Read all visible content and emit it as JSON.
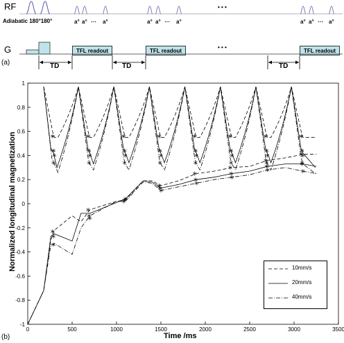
{
  "panel_a": {
    "rf_label": "RF",
    "g_label": "G",
    "adiabatic_label": "Adiabatic 180°180°",
    "alpha_label": "a°",
    "dots_label": "…",
    "ellipsis": "• • •",
    "panel_tag": "(a)",
    "tfl_readout": "TFL readout",
    "td_label": "TD"
  },
  "panel_b": {
    "panel_tag": "(b)"
  },
  "chart_data": {
    "type": "line",
    "xlabel": "Time /ms",
    "ylabel": "Normalized longitudinal magnetization",
    "xlim": [
      0,
      3500
    ],
    "ylim": [
      -1,
      1
    ],
    "xticks": [
      "0",
      "500",
      "1000",
      "1500",
      "2000",
      "2500",
      "3000",
      "3500"
    ],
    "yticks": [
      "-1",
      "-0.8",
      "-0.6",
      "-0.4",
      "-0.2",
      "0",
      "0.2",
      "0.4",
      "0.6",
      "0.8",
      "1"
    ],
    "legend": {
      "placement": "bottom-right"
    },
    "series": [
      {
        "name": "10mm/s",
        "style": "dashed",
        "upper": [
          [
            180,
            0.97
          ],
          [
            280,
            0.6
          ],
          [
            300,
            0.55
          ],
          [
            340,
            0.55
          ],
          [
            570,
            0.97
          ],
          [
            680,
            0.6
          ],
          [
            700,
            0.55
          ],
          [
            740,
            0.55
          ],
          [
            970,
            0.97
          ],
          [
            1080,
            0.6
          ],
          [
            1100,
            0.55
          ],
          [
            1140,
            0.55
          ],
          [
            1370,
            0.97
          ],
          [
            1480,
            0.6
          ],
          [
            1500,
            0.55
          ],
          [
            1540,
            0.55
          ],
          [
            1770,
            0.97
          ],
          [
            1880,
            0.6
          ],
          [
            1900,
            0.55
          ],
          [
            1940,
            0.55
          ],
          [
            2170,
            0.97
          ],
          [
            2280,
            0.6
          ],
          [
            2300,
            0.55
          ],
          [
            2340,
            0.55
          ],
          [
            2570,
            0.97
          ],
          [
            2680,
            0.6
          ],
          [
            2700,
            0.55
          ],
          [
            2740,
            0.55
          ],
          [
            2970,
            0.97
          ],
          [
            3080,
            0.6
          ],
          [
            3100,
            0.55
          ],
          [
            3240,
            0.55
          ]
        ],
        "lower": [
          [
            0,
            -1
          ],
          [
            180,
            -0.72
          ],
          [
            260,
            -0.3
          ],
          [
            300,
            -0.22
          ],
          [
            500,
            -0.1
          ],
          [
            600,
            -0.15
          ],
          [
            700,
            -0.05
          ],
          [
            1000,
            0.02
          ],
          [
            1100,
            0.03
          ],
          [
            1300,
            0.19
          ],
          [
            1400,
            0.19
          ],
          [
            1500,
            0.15
          ],
          [
            1700,
            0.19
          ],
          [
            1900,
            0.25
          ],
          [
            2100,
            0.27
          ],
          [
            2300,
            0.3
          ],
          [
            2500,
            0.31
          ],
          [
            2700,
            0.36
          ],
          [
            2900,
            0.38
          ],
          [
            3100,
            0.41
          ],
          [
            3250,
            0.41
          ]
        ]
      },
      {
        "name": "20mm/s",
        "style": "solid",
        "upper": [
          [
            180,
            0.97
          ],
          [
            260,
            0.46
          ],
          [
            290,
            0.42
          ],
          [
            330,
            0.3
          ],
          [
            570,
            0.97
          ],
          [
            680,
            0.45
          ],
          [
            700,
            0.42
          ],
          [
            740,
            0.33
          ],
          [
            970,
            0.97
          ],
          [
            1080,
            0.45
          ],
          [
            1100,
            0.42
          ],
          [
            1140,
            0.34
          ],
          [
            1370,
            0.97
          ],
          [
            1480,
            0.45
          ],
          [
            1500,
            0.42
          ],
          [
            1540,
            0.34
          ],
          [
            1770,
            0.97
          ],
          [
            1880,
            0.45
          ],
          [
            1900,
            0.42
          ],
          [
            1940,
            0.34
          ],
          [
            2170,
            0.97
          ],
          [
            2280,
            0.45
          ],
          [
            2300,
            0.42
          ],
          [
            2340,
            0.34
          ],
          [
            2570,
            0.97
          ],
          [
            2680,
            0.45
          ],
          [
            2700,
            0.42
          ],
          [
            2740,
            0.34
          ],
          [
            2970,
            0.97
          ],
          [
            3080,
            0.45
          ],
          [
            3100,
            0.42
          ],
          [
            3240,
            0.3
          ]
        ],
        "lower": [
          [
            0,
            -1
          ],
          [
            180,
            -0.72
          ],
          [
            260,
            -0.27
          ],
          [
            300,
            -0.25
          ],
          [
            500,
            -0.31
          ],
          [
            600,
            -0.08
          ],
          [
            700,
            -0.08
          ],
          [
            1000,
            0.01
          ],
          [
            1100,
            0.04
          ],
          [
            1300,
            0.19
          ],
          [
            1400,
            0.18
          ],
          [
            1500,
            0.13
          ],
          [
            1700,
            0.16
          ],
          [
            1900,
            0.2
          ],
          [
            2100,
            0.22
          ],
          [
            2300,
            0.25
          ],
          [
            2500,
            0.27
          ],
          [
            2700,
            0.31
          ],
          [
            2900,
            0.33
          ],
          [
            3100,
            0.33
          ],
          [
            3250,
            0.31
          ]
        ]
      },
      {
        "name": "40mm/s",
        "style": "dash-dot",
        "upper": [
          [
            180,
            0.97
          ],
          [
            270,
            0.38
          ],
          [
            300,
            0.33
          ],
          [
            340,
            0.26
          ],
          [
            570,
            0.97
          ],
          [
            680,
            0.38
          ],
          [
            700,
            0.33
          ],
          [
            740,
            0.28
          ],
          [
            970,
            0.97
          ],
          [
            1080,
            0.38
          ],
          [
            1100,
            0.33
          ],
          [
            1140,
            0.28
          ],
          [
            1370,
            0.97
          ],
          [
            1480,
            0.38
          ],
          [
            1500,
            0.33
          ],
          [
            1540,
            0.28
          ],
          [
            1770,
            0.97
          ],
          [
            1880,
            0.38
          ],
          [
            1900,
            0.33
          ],
          [
            1940,
            0.28
          ],
          [
            2170,
            0.97
          ],
          [
            2280,
            0.38
          ],
          [
            2300,
            0.33
          ],
          [
            2340,
            0.28
          ],
          [
            2570,
            0.97
          ],
          [
            2680,
            0.38
          ],
          [
            2700,
            0.33
          ],
          [
            2740,
            0.28
          ],
          [
            2970,
            0.97
          ],
          [
            3080,
            0.38
          ],
          [
            3100,
            0.33
          ],
          [
            3240,
            0.25
          ]
        ],
        "lower": [
          [
            0,
            -1
          ],
          [
            180,
            -0.72
          ],
          [
            260,
            -0.34
          ],
          [
            300,
            -0.33
          ],
          [
            500,
            -0.42
          ],
          [
            600,
            -0.2
          ],
          [
            700,
            -0.1
          ],
          [
            1000,
            0.02
          ],
          [
            1100,
            0.02
          ],
          [
            1300,
            0.18
          ],
          [
            1400,
            0.17
          ],
          [
            1500,
            0.11
          ],
          [
            1700,
            0.14
          ],
          [
            1900,
            0.17
          ],
          [
            2100,
            0.2
          ],
          [
            2300,
            0.22
          ],
          [
            2500,
            0.24
          ],
          [
            2700,
            0.28
          ],
          [
            2900,
            0.3
          ],
          [
            3100,
            0.27
          ],
          [
            3250,
            0.25
          ]
        ]
      }
    ],
    "markers": [
      [
        280,
        0.56
      ],
      [
        290,
        0.44
      ],
      [
        300,
        0.4
      ],
      [
        290,
        0.34
      ],
      [
        280,
        -0.23
      ],
      [
        290,
        -0.27
      ],
      [
        290,
        -0.34
      ],
      [
        680,
        0.56
      ],
      [
        690,
        0.44
      ],
      [
        700,
        0.4
      ],
      [
        690,
        0.34
      ],
      [
        680,
        -0.05
      ],
      [
        690,
        -0.1
      ],
      [
        700,
        -0.12
      ],
      [
        1080,
        0.56
      ],
      [
        1090,
        0.44
      ],
      [
        1100,
        0.4
      ],
      [
        1090,
        0.34
      ],
      [
        1080,
        0.02
      ],
      [
        1090,
        0.03
      ],
      [
        1100,
        0.04
      ],
      [
        1480,
        0.56
      ],
      [
        1490,
        0.44
      ],
      [
        1500,
        0.4
      ],
      [
        1490,
        0.34
      ],
      [
        1480,
        0.15
      ],
      [
        1490,
        0.13
      ],
      [
        1500,
        0.11
      ],
      [
        1880,
        0.56
      ],
      [
        1890,
        0.44
      ],
      [
        1900,
        0.4
      ],
      [
        1890,
        0.34
      ],
      [
        1880,
        0.25
      ],
      [
        1890,
        0.2
      ],
      [
        1900,
        0.17
      ],
      [
        2280,
        0.56
      ],
      [
        2290,
        0.44
      ],
      [
        2300,
        0.4
      ],
      [
        2290,
        0.34
      ],
      [
        2280,
        0.3
      ],
      [
        2290,
        0.25
      ],
      [
        2300,
        0.22
      ],
      [
        2680,
        0.56
      ],
      [
        2690,
        0.44
      ],
      [
        2700,
        0.4
      ],
      [
        2690,
        0.34
      ],
      [
        2680,
        0.36
      ],
      [
        2690,
        0.31
      ],
      [
        2700,
        0.28
      ],
      [
        3080,
        0.56
      ],
      [
        3090,
        0.44
      ],
      [
        3100,
        0.4
      ],
      [
        3090,
        0.34
      ],
      [
        3080,
        0.41
      ],
      [
        3090,
        0.33
      ],
      [
        3100,
        0.27
      ]
    ]
  }
}
